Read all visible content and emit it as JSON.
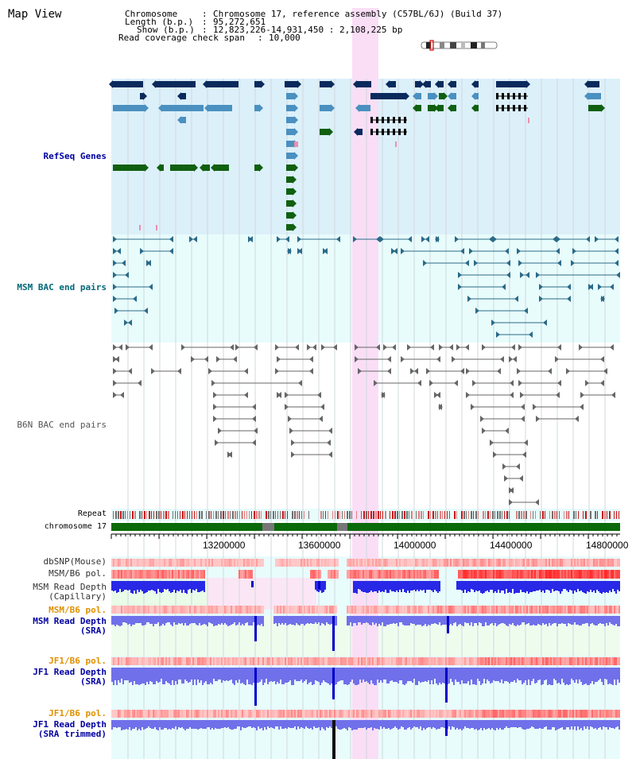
{
  "page": {
    "title": "Map View"
  },
  "info": {
    "chromosome_label": "Chromosome",
    "chromosome_value": "Chromosome 17, reference assembly (C57BL/6J) (Build 37)",
    "length_label": "Length (b.p.)",
    "length_value": "95,272,651",
    "show_label": "Show (b.p.)",
    "show_value": "12,823,226-14,931,450 : 2,108,225 bp",
    "coverage_label": "Read coverage check span",
    "coverage_value": "10,000"
  },
  "tracks": {
    "refseq": "RefSeq Genes",
    "msm_bac": "MSM BAC end pairs",
    "b6n_bac": "B6N BAC end pairs",
    "repeat": "Repeat",
    "chromosome": "chromosome 17",
    "dbsnp": "dbSNP(Mouse)",
    "msm_b6_pol": "MSM/B6 pol.",
    "msm_cap_1": "MSM Read Depth",
    "msm_cap_2": "(Capillary)",
    "msm_b6_pol2": "MSM/B6 pol.",
    "msm_sra_1": "MSM Read Depth",
    "msm_sra_2": "(SRA)",
    "jf1_pol": "JF1/B6 pol.",
    "jf1_sra_1": "JF1 Read Depth",
    "jf1_sra_2": "(SRA)",
    "jf1_pol2": "JF1/B6 pol.",
    "jf1_trim_1": "JF1 Read Depth",
    "jf1_trim_2": "(SRA trimmed)"
  },
  "axis": {
    "ticks": [
      "13200000",
      "13600000",
      "14000000",
      "14400000",
      "14800000"
    ]
  },
  "colors": {
    "refseq_bg": "#dcf0fa",
    "bac_bg": "#e8fcfc",
    "highlight": "#fadcf5",
    "gene_dark": "#0a2a5c",
    "gene_mid": "#4a90c0",
    "gene_green": "#106010",
    "msm_line": "#2a6a88",
    "b6n_line": "#666666",
    "chrom_green": "#0a6a0a",
    "label_blue": "#0000a0",
    "label_orange": "#e09000",
    "label_teal": "#006878"
  }
}
